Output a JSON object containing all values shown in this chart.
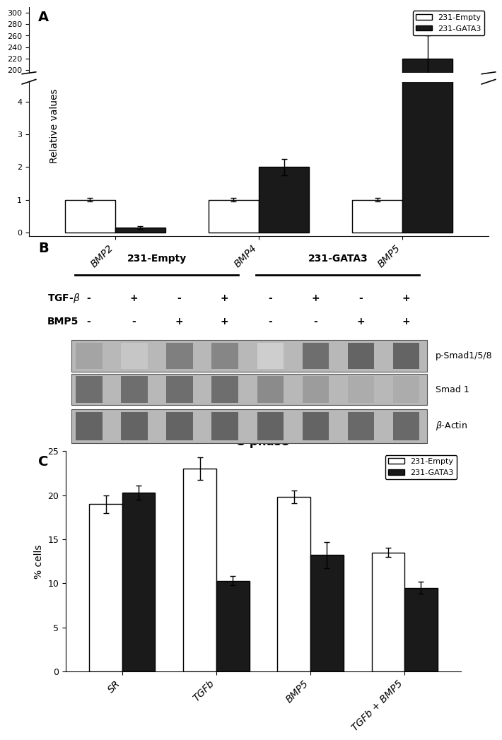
{
  "panel_A": {
    "label": "A",
    "categories": [
      "BMP2",
      "BMP4",
      "BMP5"
    ],
    "empty_values": [
      1.0,
      1.0,
      1.0
    ],
    "gata3_values": [
      0.15,
      2.0,
      220.0
    ],
    "empty_errors": [
      0.05,
      0.05,
      0.05
    ],
    "gata3_errors": [
      0.05,
      0.25,
      40.0
    ],
    "ylabel": "Relative values",
    "legend_empty": "231-Empty",
    "legend_gata3": "231-GATA3",
    "yticks_lower": [
      0,
      1,
      2,
      3,
      4
    ],
    "yticks_upper": [
      200,
      220,
      240,
      260,
      280,
      300
    ],
    "color_empty": "#ffffff",
    "color_gata3": "#1a1a1a",
    "bar_edge": "#000000"
  },
  "panel_B": {
    "label": "B",
    "group1_label": "231-Empty",
    "group2_label": "231-GATA3",
    "tgfb_labels": [
      "-",
      "+",
      "-",
      "+",
      "-",
      "+",
      "-",
      "+"
    ],
    "bmp5_labels": [
      "-",
      "-",
      "+",
      "+",
      "-",
      "-",
      "+",
      "+"
    ],
    "band_labels": [
      "p-Smad1/5/8",
      "Smad 1",
      "β-Actin"
    ],
    "p_smad_intensity": [
      0.5,
      0.3,
      0.72,
      0.68,
      0.25,
      0.82,
      0.88,
      0.88
    ],
    "smad1_intensity": [
      0.82,
      0.82,
      0.82,
      0.82,
      0.65,
      0.55,
      0.45,
      0.45
    ],
    "actin_intensity": [
      0.88,
      0.88,
      0.88,
      0.88,
      0.88,
      0.88,
      0.85,
      0.85
    ]
  },
  "panel_C": {
    "label": "C",
    "title": "S-phase",
    "categories": [
      "SR",
      "TGFb",
      "BMP5",
      "TGFb + BMP5"
    ],
    "empty_values": [
      19.0,
      23.0,
      19.8,
      13.5
    ],
    "gata3_values": [
      20.3,
      10.3,
      13.2,
      9.5
    ],
    "empty_errors": [
      1.0,
      1.3,
      0.7,
      0.5
    ],
    "gata3_errors": [
      0.8,
      0.5,
      1.5,
      0.7
    ],
    "ylabel": "% cells",
    "legend_empty": "231-Empty",
    "legend_gata3": "231-GATA3",
    "ylim": [
      0,
      25
    ],
    "yticks": [
      0,
      5,
      10,
      15,
      20,
      25
    ],
    "color_empty": "#ffffff",
    "color_gata3": "#1a1a1a",
    "bar_edge": "#000000"
  },
  "fig_bg": "#ffffff"
}
